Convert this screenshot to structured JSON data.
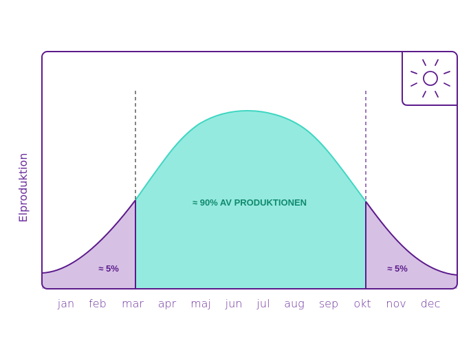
{
  "y_axis_label": "Elproduktion",
  "months": [
    "jan",
    "feb",
    "mar",
    "apr",
    "maj",
    "jun",
    "jul",
    "aug",
    "sep",
    "okt",
    "nov",
    "dec"
  ],
  "regions": {
    "left_label": "≈ 5%",
    "middle_label": "≈ 90% AV PRODUKTIONEN",
    "right_label": "≈ 5%"
  },
  "icon": "sun-icon",
  "colors": {
    "frame": "#5c1a8c",
    "middle_fill": "#95eadf",
    "middle_line": "#3fd6c2",
    "side_fill": "#d6c1e4"
  }
}
